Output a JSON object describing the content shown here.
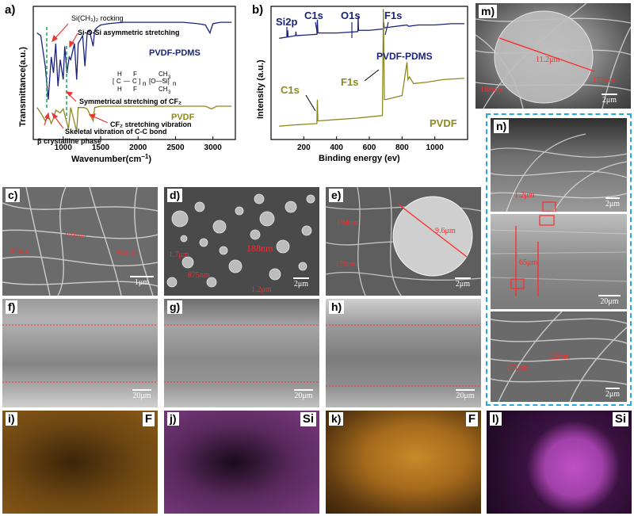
{
  "panels": {
    "a": {
      "letter": "a)",
      "chart_data": {
        "type": "line",
        "xlabel": "Wavenumber(cm",
        "xlabel_sup": "−1",
        "xlabel_end": ")",
        "ylabel": "Transmittance(a.u.)",
        "x_ticks": [
          "1000",
          "1500",
          "2000",
          "2500",
          "3000"
        ],
        "xlim": [
          600,
          3300
        ],
        "series": [
          {
            "name": "PVDF-PDMS",
            "color": "#1a237e",
            "x": [
              650,
              700,
              760,
              800,
              840,
              870,
              900,
              930,
              960,
              1000,
              1020,
              1050,
              1080,
              1100,
              1150,
              1180,
              1200,
              1260,
              1290,
              1320,
              1350,
              1400,
              1420,
              1450,
              1500,
              1600,
              1800,
              2000,
              2200,
              2400,
              2600,
              2800,
              2900,
              2960,
              3000,
              3100,
              3200,
              3250
            ],
            "y": [
              0.8,
              0.78,
              0.55,
              0.3,
              0.62,
              0.5,
              0.72,
              0.4,
              0.6,
              0.45,
              0.7,
              0.5,
              0.62,
              0.6,
              0.72,
              0.45,
              0.72,
              0.78,
              0.55,
              0.8,
              0.82,
              0.7,
              0.82,
              0.84,
              0.86,
              0.87,
              0.88,
              0.88,
              0.88,
              0.88,
              0.88,
              0.87,
              0.86,
              0.8,
              0.87,
              0.88,
              0.88,
              0.88
            ]
          },
          {
            "name": "PVDF",
            "color": "#8a8a1e",
            "x": [
              650,
              700,
              760,
              800,
              840,
              870,
              900,
              960,
              1000,
              1070,
              1100,
              1180,
              1200,
              1280,
              1320,
              1400,
              1420,
              1500,
              1700,
              2000,
              2300,
              2600,
              2900,
              2980,
              3050,
              3250
            ],
            "y": [
              0.24,
              0.2,
              0.14,
              0.18,
              0.12,
              0.16,
              0.22,
              0.2,
              0.23,
              0.08,
              0.24,
              0.06,
              0.24,
              0.24,
              0.23,
              0.14,
              0.24,
              0.25,
              0.25,
              0.25,
              0.25,
              0.25,
              0.25,
              0.23,
              0.25,
              0.25
            ]
          }
        ],
        "annotations": [
          "Si(CH₃)₂ rocking",
          "Si-O-Si asymmetric stretching",
          "Symmetrical stretching of CF₂",
          "CF₂ stretching vibration",
          "Skeletal vibration of C-C bond",
          "β crystalline phase"
        ]
      }
    },
    "b": {
      "letter": "b)",
      "chart_data": {
        "type": "line",
        "xlabel": "Binding energy (ev)",
        "ylabel": "Intensity (a.u.)",
        "x_ticks": [
          "200",
          "400",
          "600",
          "800",
          "1000"
        ],
        "xlim": [
          0,
          1200
        ],
        "series": [
          {
            "name": "PVDF-PDMS",
            "color": "#1a237e",
            "x": [
              50,
              100,
              102,
              104,
              150,
              152,
              154,
              280,
              283,
              286,
              290,
              400,
              530,
              532,
              534,
              600,
              685,
              688,
              691,
              700,
              830,
              840,
              900,
              1000,
              1100,
              1180
            ],
            "y": [
              0.76,
              0.77,
              0.82,
              0.77,
              0.78,
              0.81,
              0.78,
              0.79,
              0.9,
              0.8,
              0.8,
              0.8,
              0.81,
              0.92,
              0.82,
              0.82,
              0.83,
              0.88,
              0.84,
              0.84,
              0.86,
              0.85,
              0.86,
              0.86,
              0.87,
              0.87
            ]
          },
          {
            "name": "PVDF",
            "color": "#8a8a1e",
            "x": [
              50,
              150,
              280,
              283,
              286,
              290,
              400,
              520,
              600,
              680,
              686,
              690,
              692,
              700,
              800,
              830,
              836,
              845,
              870,
              950,
              1050,
              1180
            ],
            "y": [
              0.1,
              0.11,
              0.12,
              0.3,
              0.14,
              0.14,
              0.15,
              0.16,
              0.17,
              0.18,
              0.98,
              0.55,
              0.3,
              0.3,
              0.33,
              0.58,
              0.45,
              0.47,
              0.42,
              0.43,
              0.45,
              0.46
            ]
          }
        ],
        "peak_labels": [
          {
            "text": "Si2p",
            "color": "#1a237e"
          },
          {
            "text": "C1s",
            "color": "#1a237e"
          },
          {
            "text": "O1s",
            "color": "#1a237e"
          },
          {
            "text": "F1s",
            "color": "#1a237e"
          },
          {
            "text": "C1s",
            "color": "#8a8a1e"
          },
          {
            "text": "F1s",
            "color": "#8a8a1e"
          }
        ]
      }
    },
    "c": {
      "letter": "c)",
      "scale": "1μm",
      "annotations": [
        "82nm",
        "103nm",
        "93nm"
      ]
    },
    "d": {
      "letter": "d)",
      "scale": "2μm",
      "annotations": [
        "1.7μm",
        "188nm",
        "875nm",
        "1.2μm"
      ]
    },
    "e": {
      "letter": "e)",
      "scale": "2μm",
      "annotations": [
        "194nm",
        "9.6μm",
        "170nm"
      ]
    },
    "f": {
      "letter": "f)",
      "scale": "20μm"
    },
    "g": {
      "letter": "g)",
      "scale": "20μm"
    },
    "h": {
      "letter": "h)",
      "scale": "20μm"
    },
    "i": {
      "letter": "i)",
      "element": "F",
      "element_color": "#000000"
    },
    "j": {
      "letter": "j)",
      "element": "Si",
      "element_color": "#000000"
    },
    "k": {
      "letter": "k)",
      "element": "F",
      "element_color": "#000000"
    },
    "l": {
      "letter": "l)",
      "element": "Si",
      "element_color": "#000000"
    },
    "m": {
      "letter": "m)",
      "scale": "2μm",
      "annotations": [
        "11.2μm",
        "172nm",
        "188nm"
      ]
    },
    "n": {
      "letter": "n)",
      "scales": [
        "2μm",
        "20μm",
        "2μm"
      ],
      "annotations": [
        "1.2μm",
        "65μm",
        "171nm",
        "120nm"
      ]
    }
  },
  "colors": {
    "pvdf_pdms": "#1a237e",
    "pvdf": "#8a8a1e",
    "annotation": "#ff2a2a",
    "frame_n": "#29a8df",
    "fluorine": "#e8a030",
    "silicon": "#c050c8"
  }
}
